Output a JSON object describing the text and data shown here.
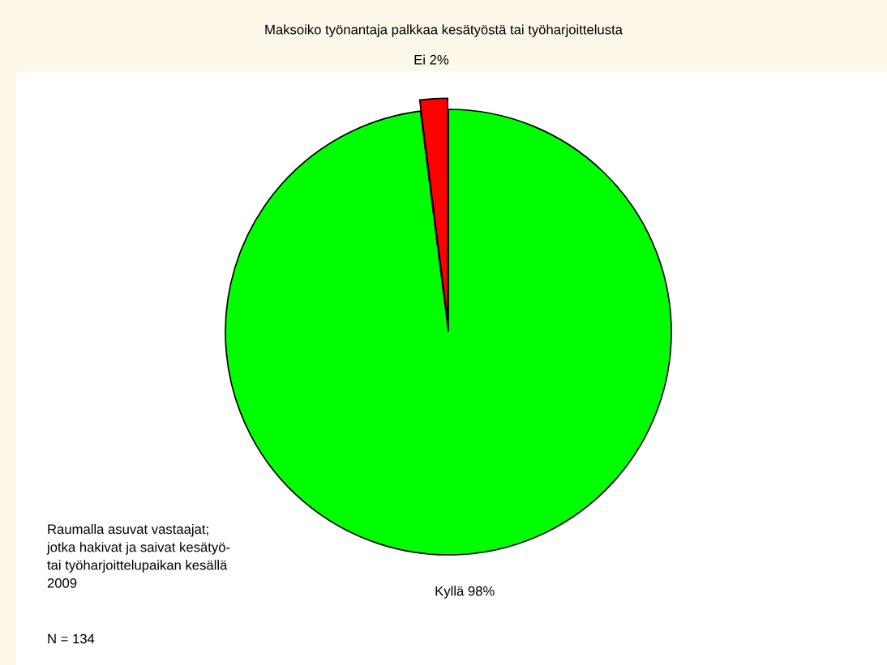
{
  "chart_data": {
    "type": "pie",
    "title": "Maksoiko työnantaja palkkaa kesätyöstä tai työharjoittelusta",
    "categories": [
      "Ei 2%",
      "Kyllä 98%"
    ],
    "values": [
      2,
      98
    ],
    "colors": [
      "#ff0000",
      "#00ff00"
    ],
    "annotations": [
      "Raumalla asuvat vastaajat;\njotka hakivat ja saivat kesätyö-\ntai työharjoittelupaikan kesällä\n2009",
      "N = 134"
    ]
  }
}
